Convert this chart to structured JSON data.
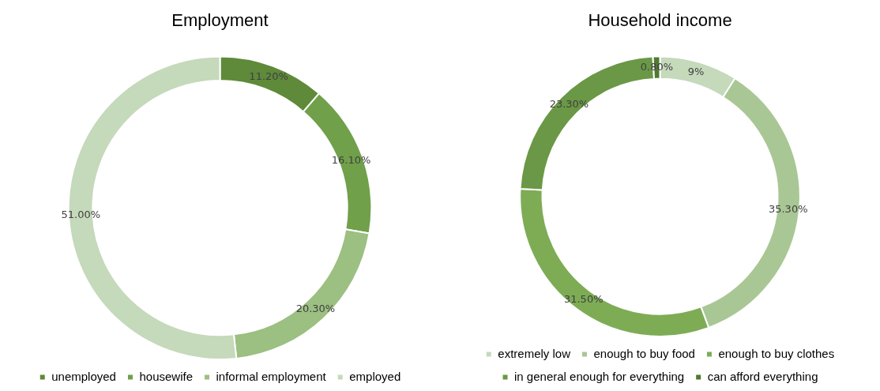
{
  "chart_data": [
    {
      "type": "donut",
      "title": "Employment",
      "categories": [
        "unemployed",
        "housewife",
        "informal employment",
        "employed"
      ],
      "values": [
        11.2,
        16.1,
        20.3,
        51.0
      ],
      "value_labels": [
        "11.20%",
        "16.10%",
        "20.30%",
        "51.00%"
      ],
      "colors": [
        "#5e8a3a",
        "#70a04a",
        "#9cbf82",
        "#c5d9bb"
      ],
      "legend": "bottom"
    },
    {
      "type": "donut",
      "title": "Household income",
      "categories": [
        "extremely low",
        "enough to buy food",
        "enough to buy clothes",
        "in general enough for everything",
        "can afford everything"
      ],
      "values": [
        9,
        35.3,
        31.5,
        23.3,
        0.8
      ],
      "value_labels": [
        "9%",
        "35.30%",
        "31.50%",
        "23.30%",
        "0.80%"
      ],
      "colors": [
        "#c5d9bb",
        "#a9c795",
        "#7dac55",
        "#6a9846",
        "#4f7a30"
      ],
      "legend": "bottom"
    }
  ]
}
